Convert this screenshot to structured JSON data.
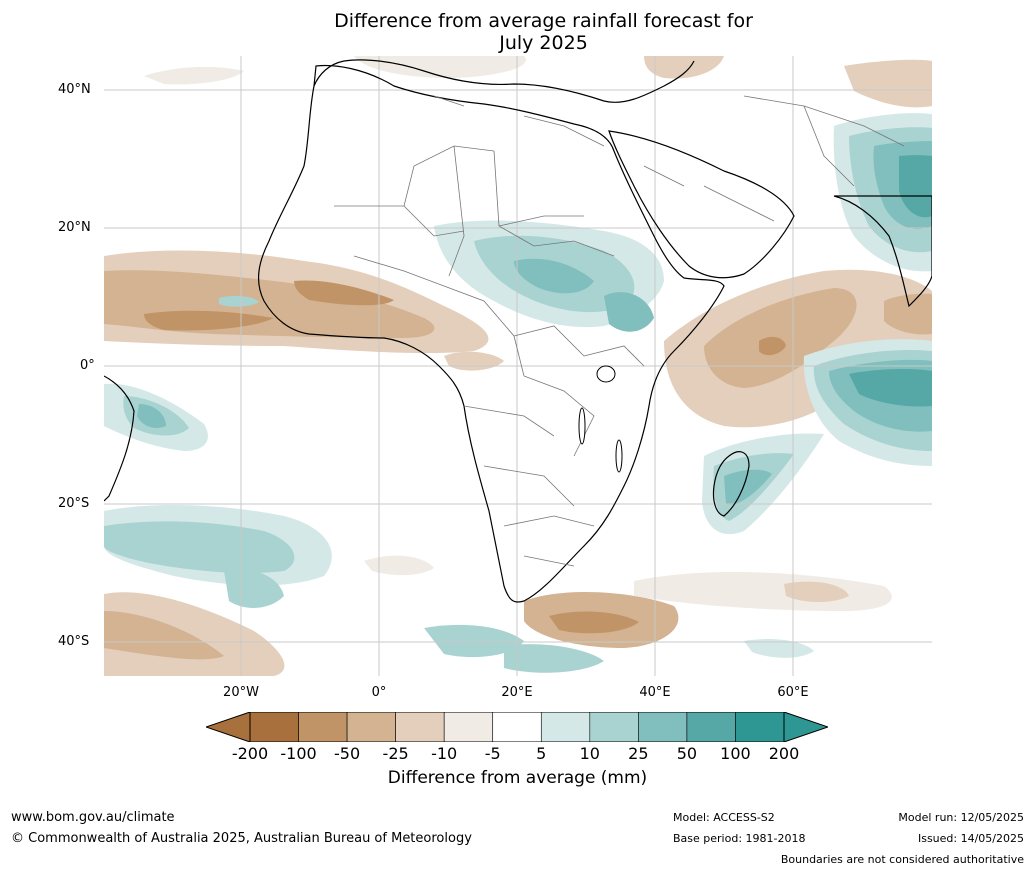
{
  "title_line1": "Difference from average rainfall forecast for",
  "title_line2": "July 2025",
  "map": {
    "lat_labels": [
      "40°N",
      "20°N",
      "0°",
      "20°S",
      "40°S"
    ],
    "lon_labels": [
      "20°W",
      "0°",
      "20°E",
      "40°E",
      "60°E"
    ]
  },
  "colorbar": {
    "ticks": [
      "-200",
      "-100",
      "-50",
      "-25",
      "-10",
      "-5",
      "5",
      "10",
      "25",
      "50",
      "100",
      "200"
    ],
    "colors": [
      "#a8703d",
      "#c19468",
      "#d3b391",
      "#e3cfbc",
      "#f0ebe5",
      "#ffffff",
      "#d4e8e7",
      "#a9d3d1",
      "#80bfbd",
      "#56a8a6",
      "#2e9793"
    ],
    "label": "Difference from average (mm)"
  },
  "footer": {
    "website": "www.bom.gov.au/climate",
    "copyright": "© Commonwealth of Australia 2025, Australian Bureau of Meteorology",
    "model": "Model: ACCESS-S2",
    "base_period": "Base period: 1981-2018",
    "model_run": "Model run: 12/05/2025",
    "issued": "Issued: 14/05/2025",
    "disclaimer": "Boundaries are not considered authoritative"
  }
}
